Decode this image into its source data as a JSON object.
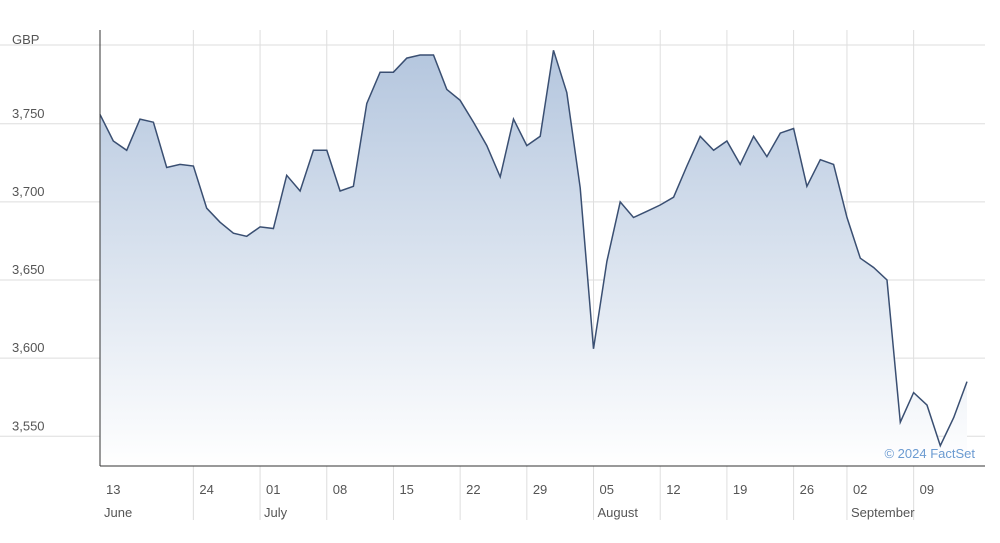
{
  "chart_data": {
    "type": "area",
    "y_label": "GBP",
    "annotation": "© 2024 FactSet",
    "categories": [
      "13",
      null,
      null,
      null,
      null,
      null,
      null,
      "24",
      null,
      null,
      null,
      null,
      "01",
      null,
      null,
      null,
      null,
      "08",
      null,
      null,
      null,
      null,
      "15",
      null,
      null,
      null,
      null,
      "22",
      null,
      null,
      null,
      null,
      "29",
      null,
      null,
      null,
      null,
      "05",
      null,
      null,
      null,
      null,
      "12",
      null,
      null,
      null,
      null,
      "19",
      null,
      null,
      null,
      null,
      "26",
      null,
      null,
      null,
      "02",
      null,
      null,
      null,
      null,
      "09",
      null,
      null,
      null,
      null
    ],
    "category_groups": [
      "June",
      null,
      null,
      null,
      null,
      null,
      null,
      null,
      null,
      null,
      null,
      null,
      "July",
      null,
      null,
      null,
      null,
      null,
      null,
      null,
      null,
      null,
      null,
      null,
      null,
      null,
      null,
      null,
      null,
      null,
      null,
      null,
      null,
      null,
      null,
      null,
      null,
      "August",
      null,
      null,
      null,
      null,
      null,
      null,
      null,
      null,
      null,
      null,
      null,
      null,
      null,
      null,
      null,
      null,
      null,
      null,
      "September",
      null,
      null,
      null,
      null,
      null,
      null,
      null,
      null,
      null
    ],
    "values": [
      3756,
      3739,
      3733,
      3753,
      3751,
      3722,
      3724,
      3723,
      3696,
      3687,
      3680,
      3678,
      3684,
      3683,
      3717,
      3707,
      3733,
      3733,
      3707,
      3710,
      3763,
      3783,
      3783,
      3792,
      3794,
      3794,
      3772,
      3765,
      3751,
      3736,
      3716,
      3753,
      3736,
      3742,
      3797,
      3770,
      3709,
      3606,
      3662,
      3700,
      3690,
      3694,
      3698,
      3703,
      3723,
      3742,
      3733,
      3739,
      3724,
      3742,
      3729,
      3744,
      3747,
      3710,
      3727,
      3724,
      3690,
      3664,
      3658,
      3650,
      3559,
      3578,
      3570,
      3544,
      3562,
      3585
    ],
    "color": "#3a4f72",
    "fill_color": "#b4c6de",
    "ylim": [
      3531,
      3810
    ],
    "yticks": [
      {
        "value": 3550,
        "label": "3,550"
      },
      {
        "value": 3600,
        "label": "3,600"
      },
      {
        "value": 3650,
        "label": "3,650"
      },
      {
        "value": 3700,
        "label": "3,700"
      },
      {
        "value": 3750,
        "label": "3,750"
      }
    ],
    "grid": true
  }
}
